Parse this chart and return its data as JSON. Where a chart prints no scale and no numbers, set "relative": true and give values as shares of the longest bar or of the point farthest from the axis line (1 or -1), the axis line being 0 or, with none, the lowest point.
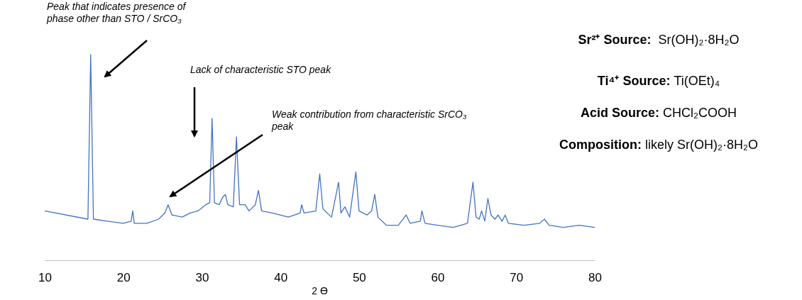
{
  "chart_data": {
    "type": "line",
    "relative": true,
    "xlabel": "2 ϴ",
    "xlim": [
      10,
      80
    ],
    "xticks": [
      10,
      20,
      30,
      40,
      50,
      60,
      70,
      80
    ],
    "grid": false,
    "marker": "none",
    "line_style": "solid",
    "series": [
      {
        "color": "#4472c4",
        "x": [
          10,
          15.5,
          15.85,
          16.2,
          18,
          20,
          21.0,
          21.2,
          21.4,
          23,
          24.5,
          25.3,
          25.7,
          26.2,
          27.5,
          28.5,
          29.5,
          30.5,
          31.0,
          31.3,
          31.6,
          32.2,
          32.7,
          33.0,
          33.3,
          34.0,
          34.4,
          34.8,
          35.5,
          36,
          36.8,
          37.2,
          37.6,
          39,
          41,
          42.5,
          42.7,
          43,
          44.5,
          45.0,
          45.4,
          46.5,
          47.4,
          47.7,
          48.2,
          48.8,
          49.6,
          50.0,
          51,
          51.6,
          52.0,
          52.4,
          53.5,
          55,
          56.0,
          56.5,
          57.8,
          58.0,
          58.4,
          60,
          62,
          63.8,
          64.5,
          64.9,
          65.3,
          65.6,
          66.0,
          66.4,
          66.8,
          67.3,
          67.7,
          68.2,
          68.6,
          69.0,
          71,
          73,
          73.6,
          74.2,
          76,
          78,
          80
        ],
        "values": [
          0.24,
          0.2,
          1,
          0.2,
          0.19,
          0.18,
          0.19,
          0.24,
          0.18,
          0.18,
          0.2,
          0.23,
          0.27,
          0.22,
          0.21,
          0.23,
          0.24,
          0.27,
          0.28,
          0.69,
          0.28,
          0.27,
          0.31,
          0.32,
          0.27,
          0.26,
          0.6,
          0.27,
          0.27,
          0.24,
          0.27,
          0.34,
          0.24,
          0.23,
          0.21,
          0.23,
          0.27,
          0.23,
          0.24,
          0.42,
          0.25,
          0.21,
          0.38,
          0.23,
          0.26,
          0.21,
          0.43,
          0.24,
          0.22,
          0.24,
          0.32,
          0.21,
          0.17,
          0.17,
          0.22,
          0.18,
          0.19,
          0.24,
          0.18,
          0.17,
          0.16,
          0.18,
          0.38,
          0.21,
          0.2,
          0.24,
          0.19,
          0.3,
          0.22,
          0.2,
          0.22,
          0.19,
          0.22,
          0.18,
          0.17,
          0.18,
          0.2,
          0.17,
          0.16,
          0.17,
          0.16
        ]
      }
    ],
    "annotations": [
      "Peak that indicates presence of phase other than STO / SrCO₃",
      "Lack of characteristic STO peak",
      "Weak contribution from characteristic SrCO₃ peak",
      "Sr²⁺ Source:  Sr(OH)₂·8H₂O",
      "Ti⁴⁺ Source: Ti(OEt)₄",
      "Acid Source: CHCl₂COOH",
      "Composition: likely Sr(OH)₂·8H₂O"
    ]
  }
}
